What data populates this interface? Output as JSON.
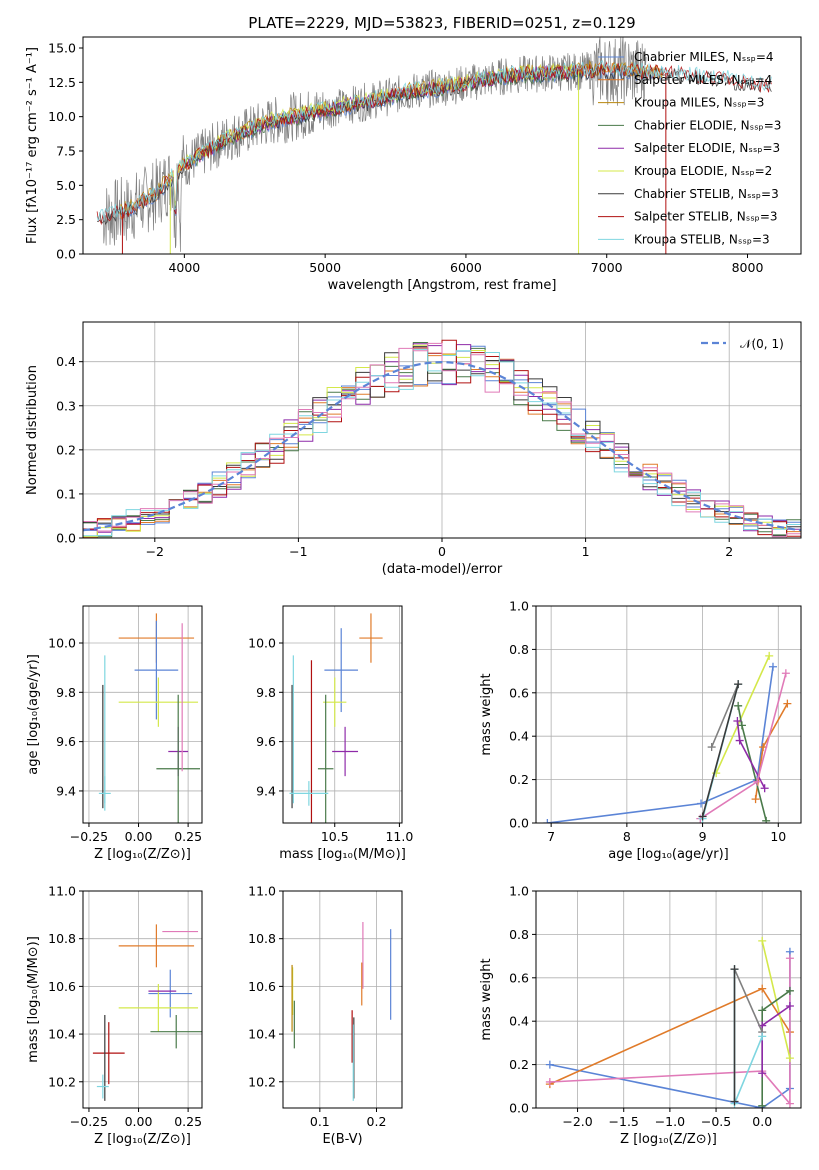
{
  "colors": {
    "chabrier_miles": "#5b84d6",
    "salpeter_miles": "#e07b2a",
    "kroupa_miles": "#b8860b",
    "chabrier_elodie": "#4a7a4a",
    "salpeter_elodie": "#8e2aa8",
    "kroupa_elodie": "#d4e84a",
    "chabrier_stelib": "#3a3a3a",
    "salpeter_stelib": "#b01010",
    "kroupa_stelib": "#7fd6e0",
    "pink": "#e07ab8",
    "gray": "#808080",
    "normal": "#5b84d6"
  },
  "chart_data": [
    {
      "id": "spectrum",
      "type": "line",
      "title": "PLATE=2229, MJD=53823, FIBERID=0251, z=0.129",
      "xlabel": "wavelength [Angstrom, rest frame]",
      "ylabel": "Flux [fλ10⁻¹⁷ erg cm⁻² s⁻¹ A⁻¹]",
      "xlim": [
        3280,
        8380
      ],
      "ylim": [
        0,
        15.8
      ],
      "xticks": [
        "4000",
        "5000",
        "6000",
        "7000",
        "8000"
      ],
      "yticks": [
        "0.0",
        "2.5",
        "5.0",
        "7.5",
        "10.0",
        "12.5",
        "15.0"
      ],
      "grid": false,
      "legend_placement": "top-right",
      "legend": [
        "Chabrier MILES, Nₛₛₚ=4",
        "Salpeter MILES, Nₛₛₚ=4",
        "Kroupa MILES, Nₛₛₚ=3",
        "Chabrier ELODIE, Nₛₛₚ=3",
        "Salpeter ELODIE, Nₛₛₚ=3",
        "Kroupa ELODIE, Nₛₛₚ=2",
        "Chabrier STELIB, Nₛₛₚ=3",
        "Salpeter STELIB, Nₛₛₚ=3",
        "Kroupa STELIB, Nₛₛₚ=3"
      ],
      "continuum": {
        "x": [
          3400,
          3600,
          3800,
          4000,
          4300,
          4600,
          5000,
          5300,
          5600,
          6000,
          6300,
          6600,
          7000,
          7400,
          7800,
          8100
        ],
        "y": [
          2.7,
          3.2,
          4.4,
          6.5,
          8.4,
          9.6,
          10.5,
          11.1,
          11.8,
          12.4,
          13.0,
          13.2,
          13.4,
          13.2,
          12.8,
          12.3
        ]
      }
    },
    {
      "id": "residuals",
      "type": "bar",
      "xlabel": "(data-model)/error",
      "ylabel": "Normed distribution",
      "xlim": [
        -2.5,
        2.5
      ],
      "ylim": [
        0,
        0.49
      ],
      "xticks": [
        "−2",
        "−1",
        "0",
        "1",
        "2"
      ],
      "yticks": [
        "0.0",
        "0.1",
        "0.2",
        "0.3",
        "0.4"
      ],
      "grid": true,
      "legend_placement": "top-right",
      "normal_label": "𝒩(0, 1)",
      "bin_width": 0.1
    },
    {
      "id": "age_vs_Z",
      "type": "scatter",
      "xlabel": "Z [log₁₀(Z/Z⊙)]",
      "ylabel": "age  [log₁₀(age/yr)]",
      "xlim": [
        -0.28,
        0.32
      ],
      "ylim": [
        9.27,
        10.15
      ],
      "xticks": [
        "−0.25",
        "0.00",
        "0.25"
      ],
      "yticks": [
        "9.4",
        "9.6",
        "9.8",
        "10.0"
      ],
      "grid": true,
      "points": [
        {
          "x": 0.09,
          "y": 10.02,
          "xerr": 0.19,
          "yerr": 0.1,
          "color": "salpeter_miles"
        },
        {
          "x": 0.09,
          "y": 9.89,
          "xerr": 0.11,
          "yerr": 0.2,
          "color": "chabrier_miles"
        },
        {
          "x": 0.1,
          "y": 9.76,
          "xerr": 0.2,
          "yerr": 0.1,
          "color": "kroupa_elodie"
        },
        {
          "x": 0.2,
          "y": 9.56,
          "xerr": 0.05,
          "yerr": 0.1,
          "color": "salpeter_elodie"
        },
        {
          "x": 0.2,
          "y": 9.49,
          "xerr": 0.11,
          "yerr": 0.3,
          "color": "chabrier_elodie"
        },
        {
          "x": 0.22,
          "y": 9.78,
          "xerr": 0.0,
          "yerr": 0.3,
          "color": "pink"
        },
        {
          "x": -0.18,
          "y": 9.58,
          "xerr": 0.0,
          "yerr": 0.25,
          "color": "chabrier_stelib"
        },
        {
          "x": -0.17,
          "y": 9.65,
          "xerr": 0.0,
          "yerr": 0.3,
          "color": "kroupa_stelib"
        },
        {
          "x": -0.17,
          "y": 9.39,
          "xerr": 0.03,
          "yerr": 0.07,
          "color": "kroupa_stelib"
        }
      ]
    },
    {
      "id": "age_vs_mass",
      "type": "scatter",
      "xlabel": "mass [log₁₀(M/M⊙)]",
      "xlim": [
        10.1,
        11.02
      ],
      "ylim": [
        9.27,
        10.15
      ],
      "xticks": [
        "10.5",
        "11.0"
      ],
      "yticks": [
        "9.4",
        "9.6",
        "9.8",
        "10.0"
      ],
      "grid": true,
      "points": [
        {
          "x": 10.78,
          "y": 10.02,
          "xerr": 0.09,
          "yerr": 0.1,
          "color": "salpeter_miles"
        },
        {
          "x": 10.55,
          "y": 9.89,
          "xerr": 0.13,
          "yerr": 0.17,
          "color": "chabrier_miles"
        },
        {
          "x": 10.5,
          "y": 9.76,
          "xerr": 0.09,
          "yerr": 0.1,
          "color": "kroupa_elodie"
        },
        {
          "x": 10.58,
          "y": 9.56,
          "xerr": 0.1,
          "yerr": 0.1,
          "color": "salpeter_elodie"
        },
        {
          "x": 10.43,
          "y": 9.49,
          "xerr": 0.06,
          "yerr": 0.3,
          "color": "chabrier_elodie"
        },
        {
          "x": 10.32,
          "y": 9.6,
          "xerr": 0.0,
          "yerr": 0.33,
          "color": "salpeter_stelib"
        },
        {
          "x": 10.17,
          "y": 9.58,
          "xerr": 0.0,
          "yerr": 0.25,
          "color": "chabrier_stelib"
        },
        {
          "x": 10.18,
          "y": 9.65,
          "xerr": 0.0,
          "yerr": 0.3,
          "color": "kroupa_stelib"
        },
        {
          "x": 10.3,
          "y": 9.39,
          "xerr": 0.15,
          "yerr": 0.05,
          "color": "kroupa_stelib"
        }
      ]
    },
    {
      "id": "massweight_vs_age",
      "type": "line",
      "xlabel": "age  [log₁₀(age/yr)]",
      "ylabel": "mass weight",
      "xlim": [
        6.8,
        10.3
      ],
      "ylim": [
        0,
        1.0
      ],
      "xticks": [
        "7",
        "8",
        "9",
        "10"
      ],
      "yticks": [
        "0.0",
        "0.2",
        "0.4",
        "0.6",
        "0.8",
        "1.0"
      ],
      "grid": true,
      "series": [
        {
          "color": "chabrier_miles",
          "x": [
            6.95,
            8.98,
            9.72,
            9.93
          ],
          "y": [
            0.0,
            0.09,
            0.2,
            0.72
          ]
        },
        {
          "color": "salpeter_miles",
          "x": [
            9.7,
            9.8,
            10.12
          ],
          "y": [
            0.11,
            0.35,
            0.55
          ]
        },
        {
          "color": "kroupa_elodie",
          "x": [
            9.18,
            9.88
          ],
          "y": [
            0.23,
            0.77
          ]
        },
        {
          "color": "chabrier_elodie",
          "x": [
            9.47,
            9.52,
            9.84
          ],
          "y": [
            0.54,
            0.45,
            0.01
          ]
        },
        {
          "color": "salpeter_elodie",
          "x": [
            9.46,
            9.49,
            9.82
          ],
          "y": [
            0.47,
            0.38,
            0.16
          ]
        },
        {
          "color": "pink",
          "x": [
            8.97,
            9.72,
            10.1
          ],
          "y": [
            0.02,
            0.19,
            0.69
          ]
        },
        {
          "color": "gray",
          "x": [
            9.12,
            9.47
          ],
          "y": [
            0.35,
            0.64
          ]
        },
        {
          "color": "kroupa_stelib",
          "x": [
            9.0,
            9.47
          ],
          "y": [
            0.02,
            0.64
          ]
        },
        {
          "color": "chabrier_stelib",
          "x": [
            9.0,
            9.47
          ],
          "y": [
            0.03,
            0.64
          ]
        }
      ]
    },
    {
      "id": "mass_vs_Z",
      "type": "scatter",
      "xlabel": "Z [log₁₀(Z/Z⊙)]",
      "ylabel": "mass [log₁₀(M/M⊙)]",
      "xlim": [
        -0.28,
        0.32
      ],
      "ylim": [
        10.09,
        11.0
      ],
      "xticks": [
        "−0.25",
        "0.00",
        "0.25"
      ],
      "yticks": [
        "10.2",
        "10.4",
        "10.6",
        "10.8",
        "11.0"
      ],
      "grid": true,
      "points": [
        {
          "x": 0.21,
          "y": 10.83,
          "xerr": 0.09,
          "yerr": 0.0,
          "color": "pink"
        },
        {
          "x": 0.09,
          "y": 10.77,
          "xerr": 0.19,
          "yerr": 0.09,
          "color": "salpeter_miles"
        },
        {
          "x": 0.16,
          "y": 10.57,
          "xerr": 0.11,
          "yerr": 0.1,
          "color": "chabrier_miles"
        },
        {
          "x": 0.1,
          "y": 10.51,
          "xerr": 0.2,
          "yerr": 0.1,
          "color": "kroupa_elodie"
        },
        {
          "x": 0.12,
          "y": 10.58,
          "xerr": 0.07,
          "yerr": 0.0,
          "color": "salpeter_elodie"
        },
        {
          "x": 0.19,
          "y": 10.41,
          "xerr": 0.13,
          "yerr": 0.07,
          "color": "chabrier_elodie"
        },
        {
          "x": -0.15,
          "y": 10.32,
          "xerr": 0.08,
          "yerr": 0.13,
          "color": "salpeter_stelib"
        },
        {
          "x": -0.17,
          "y": 10.3,
          "xerr": 0.0,
          "yerr": 0.18,
          "color": "chabrier_stelib"
        },
        {
          "x": -0.18,
          "y": 10.18,
          "xerr": 0.03,
          "yerr": 0.05,
          "color": "kroupa_stelib"
        }
      ]
    },
    {
      "id": "mass_vs_ebv",
      "type": "scatter",
      "xlabel": "E(B-V)",
      "xlim": [
        0.035,
        0.245
      ],
      "ylim": [
        10.09,
        11.0
      ],
      "xticks": [
        "0.1",
        "0.2"
      ],
      "yticks": [
        "10.2",
        "10.4",
        "10.6",
        "10.8",
        "11.0"
      ],
      "grid": true,
      "points": [
        {
          "x": 0.176,
          "y": 10.73,
          "xerr": 0,
          "yerr": 0.14,
          "color": "pink"
        },
        {
          "x": 0.174,
          "y": 10.61,
          "xerr": 0,
          "yerr": 0.09,
          "color": "salpeter_miles"
        },
        {
          "x": 0.225,
          "y": 10.65,
          "xerr": 0,
          "yerr": 0.19,
          "color": "chabrier_miles"
        },
        {
          "x": 0.052,
          "y": 10.58,
          "xerr": 0,
          "yerr": 0.1,
          "color": "kroupa_elodie"
        },
        {
          "x": 0.051,
          "y": 10.55,
          "xerr": 0,
          "yerr": 0.14,
          "color": "kroupa_miles"
        },
        {
          "x": 0.055,
          "y": 10.44,
          "xerr": 0,
          "yerr": 0.1,
          "color": "chabrier_elodie"
        },
        {
          "x": 0.157,
          "y": 10.39,
          "xerr": 0,
          "yerr": 0.11,
          "color": "salpeter_stelib"
        },
        {
          "x": 0.16,
          "y": 10.3,
          "xerr": 0,
          "yerr": 0.17,
          "color": "chabrier_stelib"
        },
        {
          "x": 0.159,
          "y": 10.28,
          "xerr": 0,
          "yerr": 0.16,
          "color": "kroupa_stelib"
        }
      ]
    },
    {
      "id": "massweight_vs_Z",
      "type": "line",
      "xlabel": "Z [log₁₀(Z/Z⊙)]",
      "ylabel": "mass weight",
      "xlim": [
        -2.45,
        0.42
      ],
      "ylim": [
        0,
        1.0
      ],
      "xticks": [
        "−2.0",
        "−1.5",
        "−1.0",
        "−0.5",
        "0.0"
      ],
      "yticks": [
        "0.0",
        "0.2",
        "0.4",
        "0.6",
        "0.8",
        "1.0"
      ],
      "grid": true,
      "series": [
        {
          "color": "chabrier_miles",
          "x": [
            -2.3,
            0.0,
            0.3,
            0.3
          ],
          "y": [
            0.2,
            0.0,
            0.09,
            0.72
          ]
        },
        {
          "color": "salpeter_miles",
          "x": [
            -2.3,
            0.0,
            0.3
          ],
          "y": [
            0.11,
            0.55,
            0.35
          ]
        },
        {
          "color": "pink",
          "x": [
            -2.3,
            0.0,
            0.3,
            0.3
          ],
          "y": [
            0.12,
            0.17,
            0.02,
            0.69
          ]
        },
        {
          "color": "kroupa_elodie",
          "x": [
            0.0,
            0.3
          ],
          "y": [
            0.77,
            0.23
          ]
        },
        {
          "color": "chabrier_elodie",
          "x": [
            0.0,
            0.0,
            0.3
          ],
          "y": [
            0.01,
            0.45,
            0.54
          ]
        },
        {
          "color": "salpeter_elodie",
          "x": [
            0.0,
            0.0,
            0.3
          ],
          "y": [
            0.16,
            0.38,
            0.47
          ]
        },
        {
          "color": "gray",
          "x": [
            -0.3,
            0.0
          ],
          "y": [
            0.64,
            0.35
          ]
        },
        {
          "color": "kroupa_stelib",
          "x": [
            -0.3,
            -0.3,
            0.0
          ],
          "y": [
            0.64,
            0.02,
            0.33
          ]
        },
        {
          "color": "chabrier_stelib",
          "x": [
            -0.3,
            -0.3
          ],
          "y": [
            0.64,
            0.03
          ]
        }
      ]
    }
  ]
}
